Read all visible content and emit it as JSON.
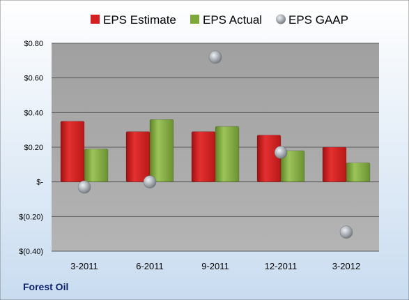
{
  "company": "Forest Oil",
  "colors": {
    "estimate": "#d42020",
    "actual": "#7fa83a",
    "gaap": "#a8aeb4",
    "background_top": "#ffffff",
    "background_bottom": "#c9dcf0",
    "plot": "#a6a6a6"
  },
  "chart_data": {
    "type": "bar",
    "categories": [
      "3-2011",
      "6-2011",
      "9-2011",
      "12-2011",
      "3-2012"
    ],
    "series": [
      {
        "name": "EPS Estimate",
        "kind": "bar",
        "values": [
          0.35,
          0.29,
          0.29,
          0.27,
          0.2
        ]
      },
      {
        "name": "EPS Actual",
        "kind": "bar",
        "values": [
          0.19,
          0.36,
          0.32,
          0.18,
          0.11
        ]
      },
      {
        "name": "EPS GAAP",
        "kind": "scatter",
        "values": [
          -0.03,
          0.0,
          0.72,
          0.17,
          -0.29
        ]
      }
    ],
    "ylim": [
      -0.4,
      0.8
    ],
    "yticks": [
      -0.4,
      -0.2,
      0.0,
      0.2,
      0.4,
      0.6,
      0.8
    ],
    "ytick_labels": [
      "$(0.40)",
      "$(0.20)",
      "$-",
      "$0.20",
      "$0.40",
      "$0.60",
      "$0.80"
    ],
    "legend_position": "top",
    "grid": true
  }
}
